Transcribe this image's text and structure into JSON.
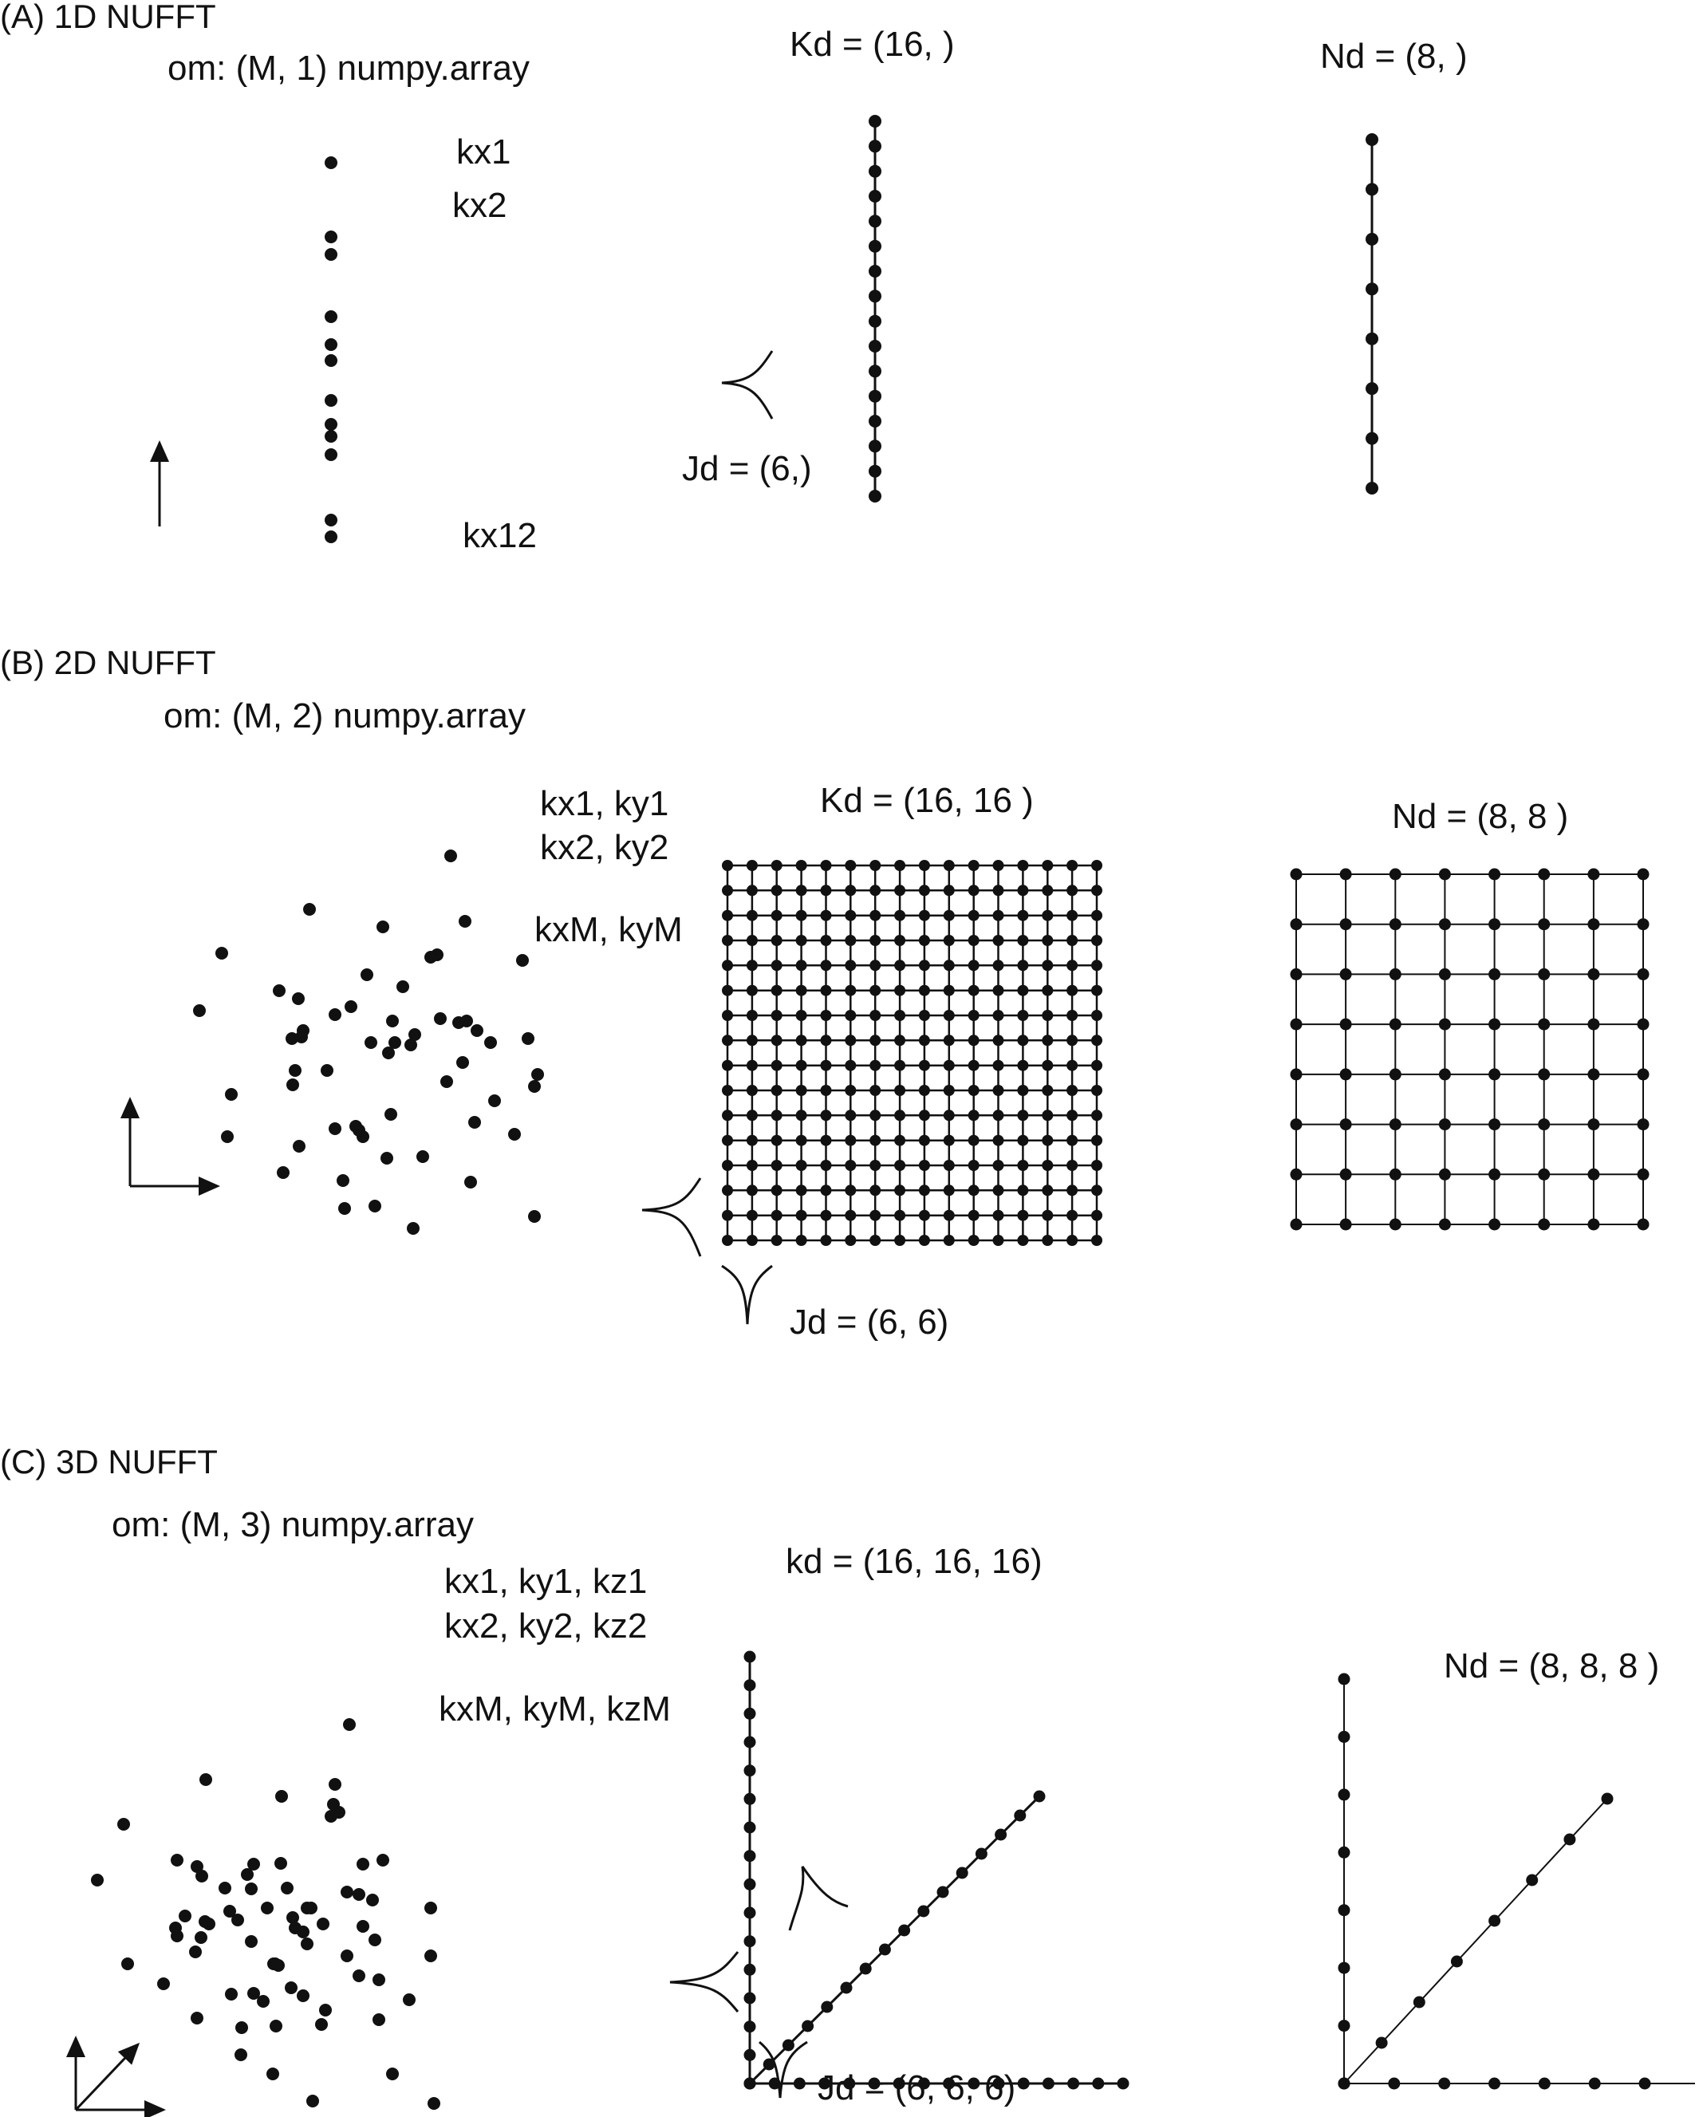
{
  "colors": {
    "ink": "#111111",
    "background": "#ffffff"
  },
  "panels": [
    {
      "id": "a",
      "title": "(A) 1D NUFFT",
      "om_label": "om: (M, 1) numpy.array",
      "coord_labels": [
        "kx1",
        "kx2",
        "kx12"
      ],
      "kd_label": "Kd = (16, )",
      "jd_label": "Jd = (6,)",
      "nd_label": "Nd = (8, )",
      "kd_points": 16,
      "nd_points": 8
    },
    {
      "id": "b",
      "title": "(B) 2D NUFFT",
      "om_label": "om: (M, 2) numpy.array",
      "coord_labels": [
        "kx1, ky1",
        "kx2, ky2",
        "kxM, kyM"
      ],
      "kd_label": "Kd = (16, 16 )",
      "jd_label": "Jd = (6, 6)",
      "nd_label": "Nd = (8, 8 )",
      "kd_points": 16,
      "nd_points": 8
    },
    {
      "id": "c",
      "title": "(C) 3D NUFFT",
      "om_label": "om: (M, 3) numpy.array",
      "coord_labels": [
        "kx1, ky1, kz1",
        "kx2, ky2, kz2",
        "kxM, kyM, kzM"
      ],
      "kd_label": "kd = (16, 16, 16)",
      "jd_label": "Jd = (6, 6, 6)",
      "nd_label": "Nd = (8, 8, 8 )",
      "kd_points": 16,
      "nd_points": 8
    }
  ]
}
